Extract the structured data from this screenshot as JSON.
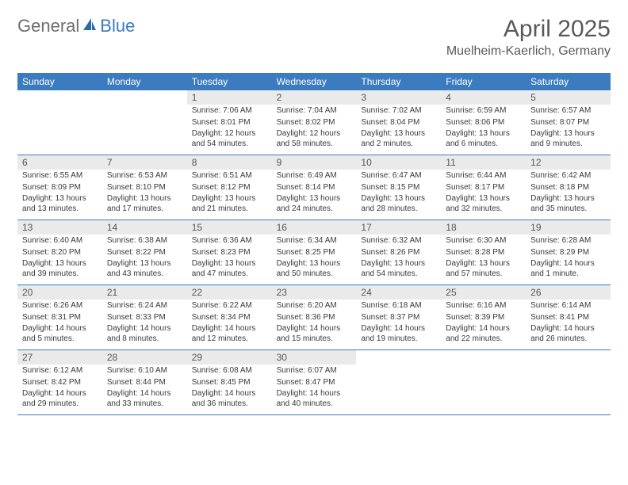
{
  "brand": {
    "general": "General",
    "blue": "Blue"
  },
  "title": "April 2025",
  "location": "Muelheim-Kaerlich, Germany",
  "colors": {
    "header_bg": "#3b7bbf",
    "header_text": "#ffffff",
    "daynum_bg": "#eaeaea",
    "border": "#3b7bbf",
    "body_text": "#3a3a3a",
    "title_text": "#595959"
  },
  "weekdays": [
    "Sunday",
    "Monday",
    "Tuesday",
    "Wednesday",
    "Thursday",
    "Friday",
    "Saturday"
  ],
  "grid": {
    "leading_blanks": 2,
    "days": 30,
    "trailing_blanks": 3
  },
  "days": {
    "1": {
      "sunrise": "7:06 AM",
      "sunset": "8:01 PM",
      "daylight": "12 hours and 54 minutes."
    },
    "2": {
      "sunrise": "7:04 AM",
      "sunset": "8:02 PM",
      "daylight": "12 hours and 58 minutes."
    },
    "3": {
      "sunrise": "7:02 AM",
      "sunset": "8:04 PM",
      "daylight": "13 hours and 2 minutes."
    },
    "4": {
      "sunrise": "6:59 AM",
      "sunset": "8:06 PM",
      "daylight": "13 hours and 6 minutes."
    },
    "5": {
      "sunrise": "6:57 AM",
      "sunset": "8:07 PM",
      "daylight": "13 hours and 9 minutes."
    },
    "6": {
      "sunrise": "6:55 AM",
      "sunset": "8:09 PM",
      "daylight": "13 hours and 13 minutes."
    },
    "7": {
      "sunrise": "6:53 AM",
      "sunset": "8:10 PM",
      "daylight": "13 hours and 17 minutes."
    },
    "8": {
      "sunrise": "6:51 AM",
      "sunset": "8:12 PM",
      "daylight": "13 hours and 21 minutes."
    },
    "9": {
      "sunrise": "6:49 AM",
      "sunset": "8:14 PM",
      "daylight": "13 hours and 24 minutes."
    },
    "10": {
      "sunrise": "6:47 AM",
      "sunset": "8:15 PM",
      "daylight": "13 hours and 28 minutes."
    },
    "11": {
      "sunrise": "6:44 AM",
      "sunset": "8:17 PM",
      "daylight": "13 hours and 32 minutes."
    },
    "12": {
      "sunrise": "6:42 AM",
      "sunset": "8:18 PM",
      "daylight": "13 hours and 35 minutes."
    },
    "13": {
      "sunrise": "6:40 AM",
      "sunset": "8:20 PM",
      "daylight": "13 hours and 39 minutes."
    },
    "14": {
      "sunrise": "6:38 AM",
      "sunset": "8:22 PM",
      "daylight": "13 hours and 43 minutes."
    },
    "15": {
      "sunrise": "6:36 AM",
      "sunset": "8:23 PM",
      "daylight": "13 hours and 47 minutes."
    },
    "16": {
      "sunrise": "6:34 AM",
      "sunset": "8:25 PM",
      "daylight": "13 hours and 50 minutes."
    },
    "17": {
      "sunrise": "6:32 AM",
      "sunset": "8:26 PM",
      "daylight": "13 hours and 54 minutes."
    },
    "18": {
      "sunrise": "6:30 AM",
      "sunset": "8:28 PM",
      "daylight": "13 hours and 57 minutes."
    },
    "19": {
      "sunrise": "6:28 AM",
      "sunset": "8:29 PM",
      "daylight": "14 hours and 1 minute."
    },
    "20": {
      "sunrise": "6:26 AM",
      "sunset": "8:31 PM",
      "daylight": "14 hours and 5 minutes."
    },
    "21": {
      "sunrise": "6:24 AM",
      "sunset": "8:33 PM",
      "daylight": "14 hours and 8 minutes."
    },
    "22": {
      "sunrise": "6:22 AM",
      "sunset": "8:34 PM",
      "daylight": "14 hours and 12 minutes."
    },
    "23": {
      "sunrise": "6:20 AM",
      "sunset": "8:36 PM",
      "daylight": "14 hours and 15 minutes."
    },
    "24": {
      "sunrise": "6:18 AM",
      "sunset": "8:37 PM",
      "daylight": "14 hours and 19 minutes."
    },
    "25": {
      "sunrise": "6:16 AM",
      "sunset": "8:39 PM",
      "daylight": "14 hours and 22 minutes."
    },
    "26": {
      "sunrise": "6:14 AM",
      "sunset": "8:41 PM",
      "daylight": "14 hours and 26 minutes."
    },
    "27": {
      "sunrise": "6:12 AM",
      "sunset": "8:42 PM",
      "daylight": "14 hours and 29 minutes."
    },
    "28": {
      "sunrise": "6:10 AM",
      "sunset": "8:44 PM",
      "daylight": "14 hours and 33 minutes."
    },
    "29": {
      "sunrise": "6:08 AM",
      "sunset": "8:45 PM",
      "daylight": "14 hours and 36 minutes."
    },
    "30": {
      "sunrise": "6:07 AM",
      "sunset": "8:47 PM",
      "daylight": "14 hours and 40 minutes."
    }
  },
  "labels": {
    "sunrise": "Sunrise:",
    "sunset": "Sunset:",
    "daylight": "Daylight:"
  }
}
